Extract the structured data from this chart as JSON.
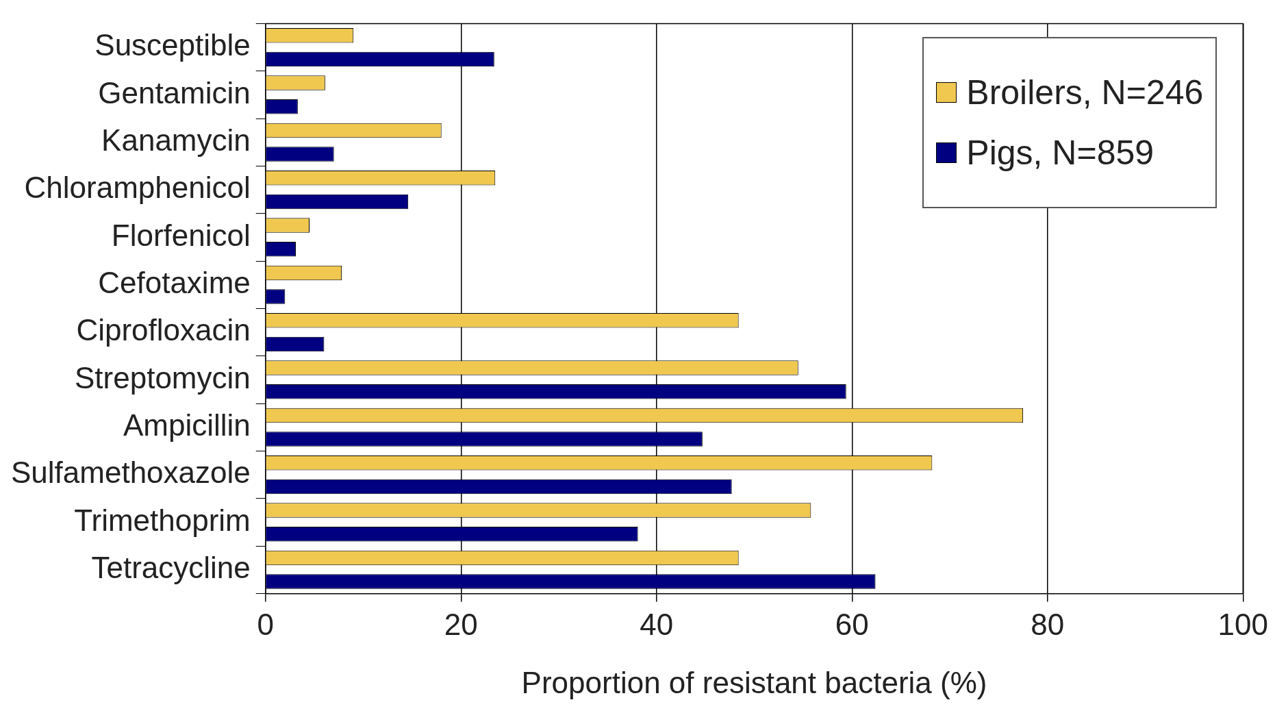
{
  "chart_data": {
    "type": "bar",
    "orientation": "horizontal",
    "xlabel": "Proportion of resistant bacteria (%)",
    "categories": [
      "Susceptible",
      "Gentamicin",
      "Kanamycin",
      "Chloramphenicol",
      "Florfenicol",
      "Cefotaxime",
      "Ciprofloxacin",
      "Streptomycin",
      "Ampicillin",
      "Sulfamethoxazole",
      "Trimethoprim",
      "Tetracycline"
    ],
    "series": [
      {
        "name": "Broilers, N=246",
        "color": "#f0c850",
        "values": [
          9.0,
          6.1,
          18.0,
          23.5,
          4.5,
          7.8,
          48.4,
          54.5,
          77.5,
          68.2,
          55.8,
          48.4
        ]
      },
      {
        "name": "Pigs, N=859",
        "color": "#000080",
        "values": [
          23.4,
          3.3,
          7.0,
          14.6,
          3.1,
          2.0,
          6.0,
          59.4,
          44.7,
          47.7,
          38.1,
          62.4
        ]
      }
    ],
    "xlim": [
      0,
      100
    ],
    "xticks": [
      0,
      20,
      40,
      60,
      80,
      100
    ],
    "grid": "x",
    "legend": "top right"
  }
}
